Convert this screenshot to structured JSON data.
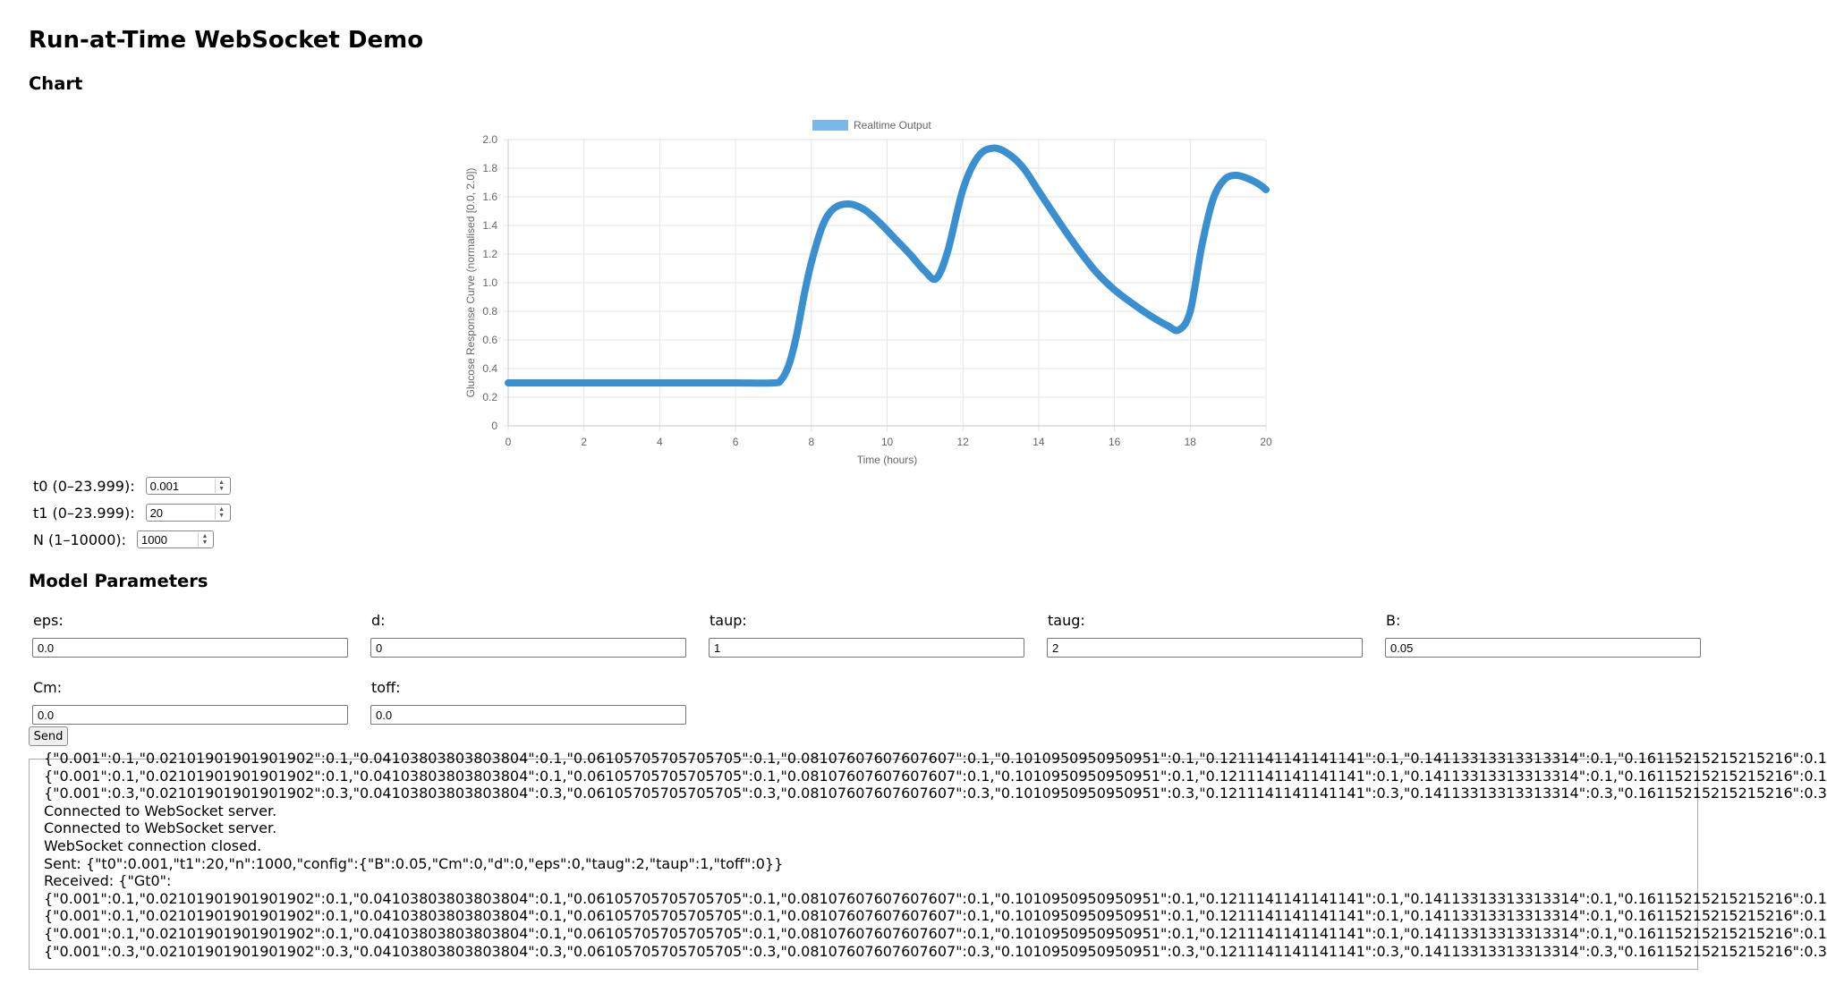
{
  "page": {
    "title": "Run-at-Time WebSocket Demo",
    "chart_heading": "Chart",
    "params_heading": "Model Parameters"
  },
  "range": {
    "t0": {
      "label": "t0 (0–23.999):",
      "value": "0.001"
    },
    "t1": {
      "label": "t1 (0–23.999):",
      "value": "20"
    },
    "n": {
      "label": "N (1–10000):",
      "value": "1000"
    }
  },
  "params": [
    {
      "key": "eps",
      "label": "eps:",
      "value": "0.0"
    },
    {
      "key": "d",
      "label": "d:",
      "value": "0"
    },
    {
      "key": "taup",
      "label": "taup:",
      "value": "1"
    },
    {
      "key": "taug",
      "label": "taug:",
      "value": "2"
    },
    {
      "key": "B",
      "label": "B:",
      "value": "0.05"
    },
    {
      "key": "Cm",
      "label": "Cm:",
      "value": "0.0"
    },
    {
      "key": "toff",
      "label": "toff:",
      "value": "0.0"
    }
  ],
  "send_label": "Send",
  "log": [
    "{\"0.001\":0.1,\"0.02101901901901902\":0.1,\"0.04103803803803804\":0.1,\"0.06105705705705705\":0.1,\"0.08107607607607607\":0.1,\"0.1010950950950951\":0.1,\"0.1211141141141141\":0.1,\"0.14113313313313314\":0.1,\"0.16115215215215216\":0.1",
    "{\"0.001\":0.1,\"0.02101901901901902\":0.1,\"0.04103803803803804\":0.1,\"0.06105705705705705\":0.1,\"0.08107607607607607\":0.1,\"0.1010950950950951\":0.1,\"0.1211141141141141\":0.1,\"0.14113313313313314\":0.1,\"0.16115215215215216\":0.1",
    "{\"0.001\":0.3,\"0.02101901901901902\":0.3,\"0.04103803803803804\":0.3,\"0.06105705705705705\":0.3,\"0.08107607607607607\":0.3,\"0.1010950950950951\":0.3,\"0.1211141141141141\":0.3,\"0.14113313313313314\":0.3,\"0.16115215215215216\":0.3",
    "Connected to WebSocket server.",
    "Connected to WebSocket server.",
    "WebSocket connection closed.",
    "Sent: {\"t0\":0.001,\"t1\":20,\"n\":1000,\"config\":{\"B\":0.05,\"Cm\":0,\"d\":0,\"eps\":0,\"taug\":2,\"taup\":1,\"toff\":0}}",
    "Received: {\"Gt0\":",
    "{\"0.001\":0.1,\"0.02101901901901902\":0.1,\"0.04103803803803804\":0.1,\"0.06105705705705705\":0.1,\"0.08107607607607607\":0.1,\"0.1010950950950951\":0.1,\"0.1211141141141141\":0.1,\"0.14113313313313314\":0.1,\"0.16115215215215216\":0.1",
    "{\"0.001\":0.1,\"0.02101901901901902\":0.1,\"0.04103803803803804\":0.1,\"0.06105705705705705\":0.1,\"0.08107607607607607\":0.1,\"0.1010950950950951\":0.1,\"0.1211141141141141\":0.1,\"0.14113313313313314\":0.1,\"0.16115215215215216\":0.1",
    "{\"0.001\":0.1,\"0.02101901901901902\":0.1,\"0.04103803803803804\":0.1,\"0.06105705705705705\":0.1,\"0.08107607607607607\":0.1,\"0.1010950950950951\":0.1,\"0.1211141141141141\":0.1,\"0.14113313313313314\":0.1,\"0.16115215215215216\":0.1",
    "{\"0.001\":0.3,\"0.02101901901901902\":0.3,\"0.04103803803803804\":0.3,\"0.06105705705705705\":0.3,\"0.08107607607607607\":0.3,\"0.1010950950950951\":0.3,\"0.1211141141141141\":0.3,\"0.14113313313313314\":0.3,\"0.16115215215215216\":0.3"
  ],
  "chart_data": {
    "type": "line",
    "title": "",
    "legend": "Realtime Output",
    "legend_position": "top",
    "xlabel": "Time (hours)",
    "ylabel": "Glucose Response Curve (normalised [0.0, 2.0])",
    "xlim": [
      0,
      20
    ],
    "ylim": [
      0,
      2.0
    ],
    "xticks": [
      "0",
      "2",
      "4",
      "6",
      "8",
      "10",
      "12",
      "14",
      "16",
      "18",
      "20"
    ],
    "yticks": [
      "0",
      "0.2",
      "0.4",
      "0.6",
      "0.8",
      "1.0",
      "1.2",
      "1.4",
      "1.6",
      "1.8",
      "2.0"
    ],
    "grid": true,
    "color": "#3a8fd1",
    "legend_color": "#7ab8ea",
    "series": [
      {
        "name": "Realtime Output",
        "x": [
          0,
          1,
          2,
          3,
          4,
          5,
          6,
          7,
          7.2,
          7.4,
          7.6,
          7.8,
          8.0,
          8.3,
          8.6,
          9.0,
          9.4,
          9.8,
          10.2,
          10.6,
          11.0,
          11.3,
          11.6,
          12.0,
          12.4,
          12.8,
          13.2,
          13.6,
          14.0,
          14.5,
          15.0,
          15.5,
          16.0,
          16.5,
          17.0,
          17.4,
          17.7,
          18.0,
          18.3,
          18.6,
          18.9,
          19.2,
          19.5,
          19.8,
          20.0
        ],
        "y": [
          0.3,
          0.3,
          0.3,
          0.3,
          0.3,
          0.3,
          0.3,
          0.3,
          0.32,
          0.42,
          0.62,
          0.9,
          1.14,
          1.4,
          1.52,
          1.55,
          1.51,
          1.42,
          1.31,
          1.2,
          1.08,
          1.03,
          1.22,
          1.65,
          1.88,
          1.94,
          1.9,
          1.8,
          1.64,
          1.44,
          1.25,
          1.08,
          0.95,
          0.85,
          0.76,
          0.7,
          0.67,
          0.8,
          1.25,
          1.58,
          1.72,
          1.75,
          1.73,
          1.69,
          1.65
        ]
      }
    ]
  }
}
